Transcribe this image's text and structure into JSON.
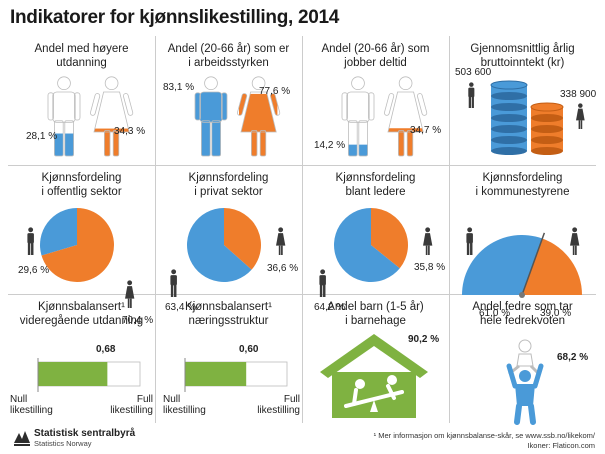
{
  "title": "Indikatorer for kjønnslikestilling, 2014",
  "colors": {
    "blue": "#4a9ad8",
    "orange": "#ef7d2b",
    "green": "#7fb241",
    "white": "#ffffff",
    "dark": "#3a3a3a",
    "grid": "#cccccc"
  },
  "chart_data": [
    {
      "type": "pictogram",
      "title_lines": [
        "Andel med høyere",
        "utdanning"
      ],
      "series": [
        {
          "name": "Menn",
          "value": 28.1,
          "label": "28,1 %"
        },
        {
          "name": "Kvinner",
          "value": 34.3,
          "label": "34,3 %"
        }
      ]
    },
    {
      "type": "pictogram",
      "title_lines": [
        "Andel (20-66 år) som er",
        "i arbeidsstyrken"
      ],
      "series": [
        {
          "name": "Menn",
          "value": 83.1,
          "label": "83,1 %"
        },
        {
          "name": "Kvinner",
          "value": 77.6,
          "label": "77,6 %"
        }
      ]
    },
    {
      "type": "pictogram",
      "title_lines": [
        "Andel (20-66 år) som",
        "jobber deltid"
      ],
      "series": [
        {
          "name": "Menn",
          "value": 14.2,
          "label": "14,2 %"
        },
        {
          "name": "Kvinner",
          "value": 34.7,
          "label": "34,7 %"
        }
      ]
    },
    {
      "type": "bar",
      "title_lines": [
        "Gjennomsnittlig årlig",
        "bruttoinntekt (kr)"
      ],
      "series": [
        {
          "name": "Menn",
          "value": 503600,
          "label": "503 600"
        },
        {
          "name": "Kvinner",
          "value": 338900,
          "label": "338 900"
        }
      ]
    },
    {
      "type": "pie",
      "title_lines": [
        "Kjønnsfordeling",
        "i offentlig sektor"
      ],
      "series": [
        {
          "name": "Menn",
          "value": 29.6,
          "label": "29,6 %"
        },
        {
          "name": "Kvinner",
          "value": 70.4,
          "label": "70,4 %"
        }
      ]
    },
    {
      "type": "pie",
      "title_lines": [
        "Kjønnsfordeling",
        "i privat sektor"
      ],
      "series": [
        {
          "name": "Menn",
          "value": 63.4,
          "label": "63,4 %"
        },
        {
          "name": "Kvinner",
          "value": 36.6,
          "label": "36,6 %"
        }
      ]
    },
    {
      "type": "pie",
      "title_lines": [
        "Kjønnsfordeling",
        "blant ledere"
      ],
      "series": [
        {
          "name": "Menn",
          "value": 64.2,
          "label": "64,2 %"
        },
        {
          "name": "Kvinner",
          "value": 35.8,
          "label": "35,8 %"
        }
      ]
    },
    {
      "type": "gauge",
      "title_lines": [
        "Kjønnsfordeling",
        "i kommunestyrene"
      ],
      "series": [
        {
          "name": "Menn",
          "value": 61.0,
          "label": "61,0 %"
        },
        {
          "name": "Kvinner",
          "value": 39.0,
          "label": "39,0 %"
        }
      ]
    },
    {
      "type": "bar",
      "title_lines": [
        "Kjønnsbalansert¹",
        "videregående utdanning"
      ],
      "value": 0.68,
      "value_label": "0,68",
      "xlim": [
        0,
        1
      ],
      "min_label_lines": [
        "Null",
        "likestilling"
      ],
      "max_label_lines": [
        "Full",
        "likestilling"
      ]
    },
    {
      "type": "bar",
      "title_lines": [
        "Kjønnsbalansert¹",
        "næringsstruktur"
      ],
      "value": 0.6,
      "value_label": "0,60",
      "xlim": [
        0,
        1
      ],
      "min_label_lines": [
        "Null",
        "likestilling"
      ],
      "max_label_lines": [
        "Full",
        "likestilling"
      ]
    },
    {
      "type": "pictogram",
      "title_lines": [
        "Andel barn (1-5 år)",
        "i barnehage"
      ],
      "value": 90.2,
      "label": "90,2 %"
    },
    {
      "type": "pictogram",
      "title_lines": [
        "Andel fedre som tar",
        "hele fedrekvoten"
      ],
      "value": 68.2,
      "label": "68,2 %"
    }
  ],
  "footer": {
    "logo_line1": "Statistisk sentralbyrå",
    "logo_line2": "Statistics Norway",
    "note_line1": "¹ Mer informasjon om kjønnsbalanse-skår, se www.ssb.no/likekom/",
    "note_line2": "Ikoner: Flaticon.com"
  }
}
